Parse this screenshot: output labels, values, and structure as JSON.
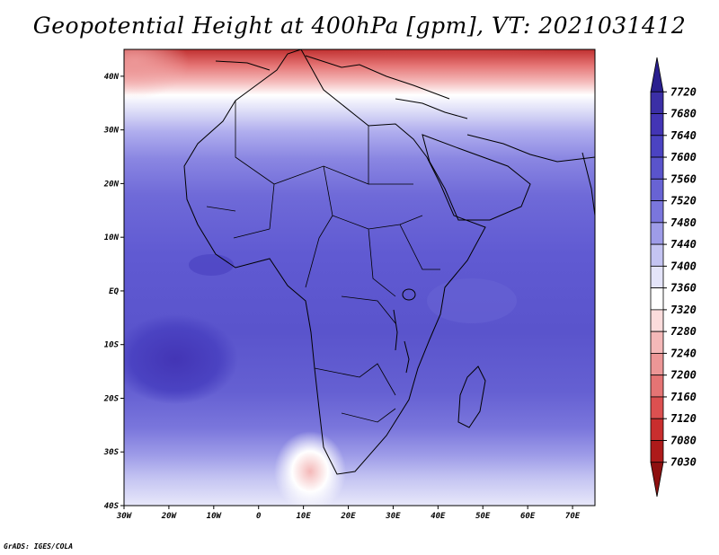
{
  "title": "Geopotential Height at 400hPa [gpm], VT: 2021031412",
  "credit": "GrADS: IGES/COLA",
  "map": {
    "lon_range": [
      -30,
      75
    ],
    "lat_range": [
      -40,
      45
    ],
    "lon_ticks": [
      {
        "value": -30,
        "label": "30W"
      },
      {
        "value": -20,
        "label": "20W"
      },
      {
        "value": -10,
        "label": "10W"
      },
      {
        "value": 0,
        "label": "0"
      },
      {
        "value": 10,
        "label": "10E"
      },
      {
        "value": 20,
        "label": "20E"
      },
      {
        "value": 30,
        "label": "30E"
      },
      {
        "value": 40,
        "label": "40E"
      },
      {
        "value": 50,
        "label": "50E"
      },
      {
        "value": 60,
        "label": "60E"
      },
      {
        "value": 70,
        "label": "70E"
      }
    ],
    "lat_ticks": [
      {
        "value": 40,
        "label": "40N"
      },
      {
        "value": 30,
        "label": "30N"
      },
      {
        "value": 20,
        "label": "20N"
      },
      {
        "value": 10,
        "label": "10N"
      },
      {
        "value": 0,
        "label": "EQ"
      },
      {
        "value": -10,
        "label": "10S"
      },
      {
        "value": -20,
        "label": "20S"
      },
      {
        "value": -30,
        "label": "30S"
      },
      {
        "value": -40,
        "label": "40S"
      }
    ]
  },
  "colorbar": {
    "levels": [
      "7720",
      "7680",
      "7640",
      "7600",
      "7560",
      "7520",
      "7480",
      "7440",
      "7400",
      "7360",
      "7320",
      "7280",
      "7240",
      "7200",
      "7160",
      "7120",
      "7080",
      "7030"
    ],
    "colors": [
      "#2a1f8f",
      "#3b2fa6",
      "#4335b5",
      "#4b43c2",
      "#5a54cc",
      "#6863d4",
      "#7a76dc",
      "#9e9ce8",
      "#c4c4f2",
      "#e4e4f9",
      "#ffffff",
      "#fbdcdc",
      "#f4b8b8",
      "#ec9696",
      "#e57474",
      "#dc5050",
      "#c92e2e",
      "#ae1a1a",
      "#8e1010"
    ]
  },
  "chart_data": {
    "type": "heatmap",
    "title": "Geopotential Height at 400hPa [gpm], VT: 2021031412",
    "x_range": [
      -30,
      75
    ],
    "y_range": [
      -40,
      45
    ],
    "x_ticks": [
      "30W",
      "20W",
      "10W",
      "0",
      "10E",
      "20E",
      "30E",
      "40E",
      "50E",
      "60E",
      "70E"
    ],
    "y_ticks": [
      "40N",
      "30N",
      "20N",
      "10N",
      "EQ",
      "10S",
      "20S",
      "30S",
      "40S"
    ],
    "color_levels": [
      7030,
      7080,
      7120,
      7160,
      7200,
      7240,
      7280,
      7320,
      7360,
      7400,
      7440,
      7480,
      7520,
      7560,
      7600,
      7640,
      7680,
      7720
    ],
    "field": {
      "north_trough_lat40": "7200-7360",
      "lat30": "7400-7480",
      "lat20": "7480-7520",
      "tropics_0_to_10": "7520-7560",
      "atlantic_max_10S_20S": "7560-7600",
      "lat30S": "7480-7520",
      "lat40S": "7360-7440"
    }
  }
}
